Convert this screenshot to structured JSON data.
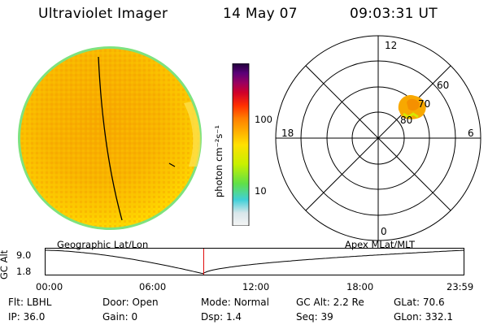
{
  "header": {
    "instrument": "Ultraviolet Imager",
    "date": "14 May 07",
    "time": "09:03:31 UT"
  },
  "colorbar": {
    "unit_label": "photon cm⁻²s⁻¹",
    "ticks": [
      "100",
      "10"
    ],
    "colors": [
      "#f5f5f5",
      "#d8e6ea",
      "#40d0d8",
      "#60e048",
      "#c8f000",
      "#ffe000",
      "#ffb000",
      "#ff8000",
      "#ff3000",
      "#d0002a",
      "#9a0060",
      "#5a0078",
      "#20003a"
    ]
  },
  "geographic": {
    "label": "Geographic Lat/Lon",
    "disk_color": "#f8b800",
    "rim_color": "#7ee27e"
  },
  "polar": {
    "label": "Apex MLat/MLT",
    "mlt_labels": {
      "top": "12",
      "left": "18",
      "right": "6",
      "bottom": "0"
    },
    "lat_labels": [
      "60",
      "70",
      "80"
    ],
    "blob_color": "#f8a800"
  },
  "altitude": {
    "axis_label": "GC Alt",
    "ticks": [
      "9.0",
      "1.8"
    ],
    "time_ticks": [
      "00:00",
      "06:00",
      "12:00",
      "18:00",
      "23:59"
    ],
    "current_time_marker_hours": 9.06,
    "marker_color": "#e00000"
  },
  "status": {
    "row1": [
      {
        "label": "Flt:",
        "value": "LBHL"
      },
      {
        "label": "Door:",
        "value": "Open"
      },
      {
        "label": "Mode:",
        "value": "Normal"
      },
      {
        "label": "GC Alt:",
        "value": "2.2 Re"
      },
      {
        "label": "GLat:",
        "value": "70.6"
      }
    ],
    "row2": [
      {
        "label": "IP:",
        "value": "36.0"
      },
      {
        "label": "Gain:",
        "value": "0"
      },
      {
        "label": "Dsp:",
        "value": "1.4"
      },
      {
        "label": "Seq:",
        "value": "39"
      },
      {
        "label": "GLon:",
        "value": "332.1"
      }
    ]
  }
}
